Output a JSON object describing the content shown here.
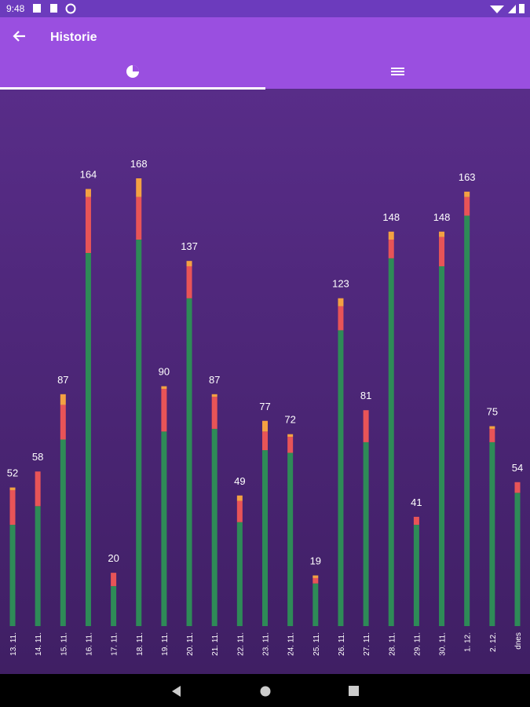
{
  "status_bar": {
    "time": "9:48"
  },
  "app_bar": {
    "title": "Historie"
  },
  "chart_data": {
    "type": "stacked-bar",
    "categories": [
      "13. 11.",
      "14. 11.",
      "15. 11.",
      "16. 11.",
      "17. 11.",
      "18. 11.",
      "19. 11.",
      "20. 11.",
      "21. 11.",
      "22. 11.",
      "23. 11.",
      "24. 11.",
      "25. 11.",
      "26. 11.",
      "27. 11.",
      "28. 11.",
      "29. 11.",
      "30. 11.",
      "1. 12.",
      "2. 12.",
      "dnes"
    ],
    "totals": [
      52,
      58,
      87,
      164,
      20,
      168,
      90,
      137,
      87,
      49,
      77,
      72,
      19,
      123,
      81,
      148,
      41,
      148,
      163,
      75,
      54
    ],
    "series": [
      {
        "color": "#2e8b57",
        "values": [
          38,
          45,
          70,
          140,
          15,
          145,
          73,
          123,
          74,
          39,
          66,
          65,
          16,
          111,
          69,
          138,
          38,
          135,
          154,
          69,
          50
        ]
      },
      {
        "color": "#e85457",
        "values": [
          13,
          13,
          13,
          21,
          5,
          16,
          16,
          12,
          12,
          8,
          7,
          6,
          2,
          9,
          12,
          7,
          3,
          11,
          7,
          5,
          4
        ]
      },
      {
        "color": "#f4a142",
        "values": [
          1,
          0,
          4,
          3,
          0,
          7,
          1,
          2,
          1,
          2,
          4,
          1,
          1,
          3,
          0,
          3,
          0,
          2,
          2,
          1,
          0
        ]
      }
    ]
  }
}
